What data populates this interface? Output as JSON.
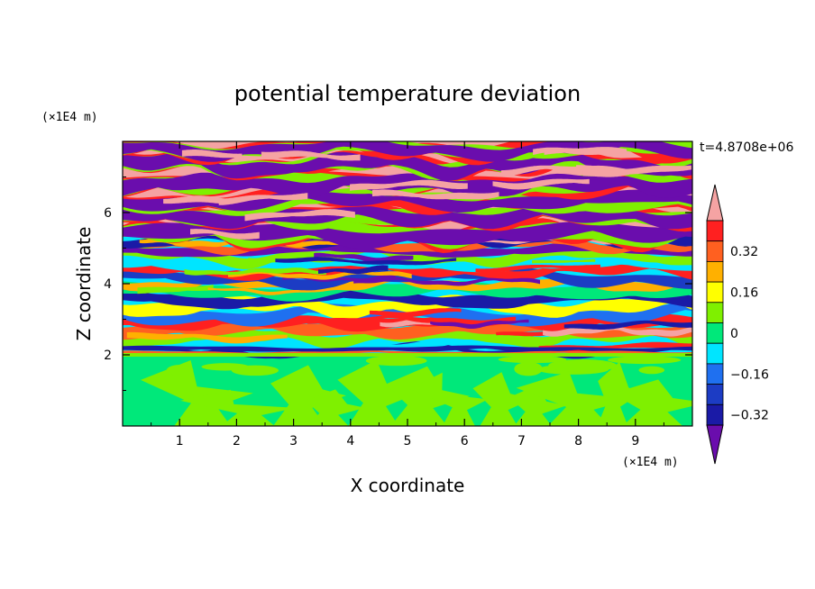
{
  "chart_data": {
    "type": "heatmap",
    "title": "potential temperature deviation",
    "xlabel": "X coordinate",
    "ylabel": "Z coordinate",
    "x_unit": "(×1E4 m)",
    "y_unit": "(×1E4 m)",
    "time_label": "t=4.8708e+06",
    "xlim": [
      0,
      10
    ],
    "ylim": [
      0,
      8
    ],
    "x_ticks": [
      "1",
      "2",
      "3",
      "4",
      "5",
      "6",
      "7",
      "8",
      "9"
    ],
    "y_ticks": [
      "2",
      "4",
      "6"
    ],
    "colorbar": {
      "labels": [
        "0.32",
        "0.16",
        "0",
        "−0.16",
        "−0.32"
      ],
      "levels": [
        -0.4,
        -0.32,
        -0.24,
        -0.16,
        -0.08,
        0,
        0.08,
        0.16,
        0.24,
        0.32,
        0.4
      ],
      "colors": [
        "#6a0dad",
        "#1a1aa6",
        "#1c3cc4",
        "#1f70f0",
        "#00e5ff",
        "#00e87a",
        "#7ff000",
        "#ffff00",
        "#ffb000",
        "#ff6020",
        "#ff2020",
        "#f5a3a3"
      ]
    },
    "regions": [
      {
        "z_range": [
          0,
          2
        ],
        "description_value": "near 0 (green / light-green plumes)"
      },
      {
        "z_range": [
          2,
          5.5
        ],
        "description_value": "alternating layers -0.32 to 0.32"
      },
      {
        "z_range": [
          5.5,
          8
        ],
        "description_value": "bands of about +0.4 and -0.4"
      }
    ]
  }
}
